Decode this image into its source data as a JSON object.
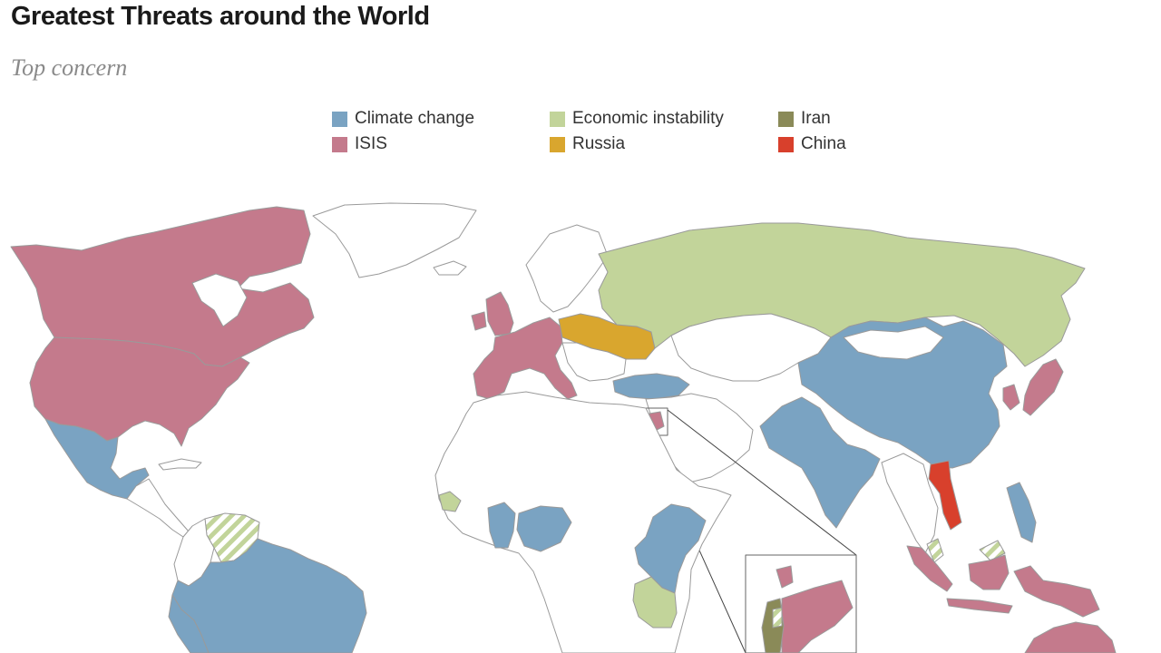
{
  "title": "Greatest Threats around the World",
  "subtitle": "Top concern",
  "legend": [
    {
      "label": "Climate change",
      "color": "#7aa3c2"
    },
    {
      "label": "Economic instability",
      "color": "#c2d49a"
    },
    {
      "label": "Iran",
      "color": "#8a8a58"
    },
    {
      "label": "ISIS",
      "color": "#c47a8c"
    },
    {
      "label": "Russia",
      "color": "#d9a62e"
    },
    {
      "label": "China",
      "color": "#d8402c"
    }
  ],
  "colors": {
    "climate": "#7aa3c2",
    "economy": "#c2d49a",
    "iran": "#8a8a58",
    "isis": "#c47a8c",
    "russia": "#d9a62e",
    "china": "#d8402c",
    "no_data": "#ffffff",
    "border": "#9a9a9a"
  },
  "regions": [
    {
      "name": "North America",
      "concern": "ISIS"
    },
    {
      "name": "Mexico",
      "concern": "Climate change"
    },
    {
      "name": "South America",
      "concern": "Climate change"
    },
    {
      "name": "Venezuela",
      "concern": "Economic instability"
    },
    {
      "name": "Europe",
      "concern": "ISIS"
    },
    {
      "name": "Poland / Ukraine",
      "concern": "Russia"
    },
    {
      "name": "Russia",
      "concern": "Economic instability"
    },
    {
      "name": "Turkey",
      "concern": "Climate change"
    },
    {
      "name": "China",
      "concern": "Climate change"
    },
    {
      "name": "India",
      "concern": "Climate change"
    },
    {
      "name": "Japan",
      "concern": "ISIS"
    },
    {
      "name": "Vietnam",
      "concern": "China"
    },
    {
      "name": "Israel",
      "concern": "Iran"
    },
    {
      "name": "Nigeria",
      "concern": "Climate change"
    },
    {
      "name": "Tanzania",
      "concern": "Economic instability"
    },
    {
      "name": "Indonesia",
      "concern": "ISIS"
    },
    {
      "name": "Australia",
      "concern": "ISIS"
    }
  ]
}
